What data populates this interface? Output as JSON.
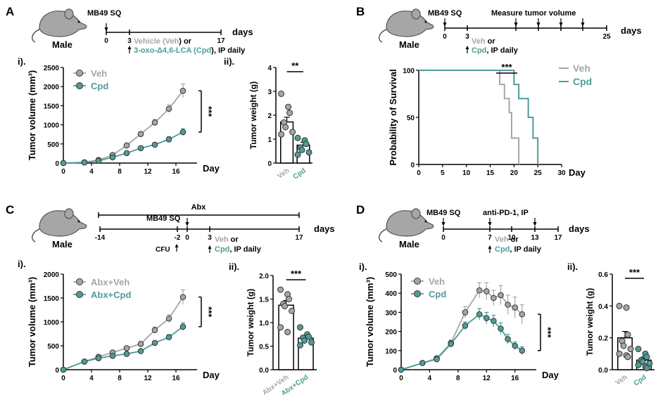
{
  "colors": {
    "veh": "#a6a6a6",
    "cpd": "#4f9c98",
    "axis": "#000000",
    "mouse": "#a6a6a6"
  },
  "panels": {
    "A": {
      "letter": "A",
      "mouse_label": "Male",
      "event": "MB49 SQ",
      "days_label": "days",
      "ticks": [
        "0",
        "3",
        "17"
      ],
      "treat_parts": [
        {
          "t": "Vehicle (",
          "c": "veh"
        },
        {
          "t": "Veh",
          "c": "veh"
        },
        {
          "t": ") or",
          "c": "axis"
        }
      ],
      "treat_line2": [
        {
          "t": "3-oxo-Δ4,6-LCA (",
          "c": "cpd"
        },
        {
          "t": "Cpd",
          "c": "cpd"
        },
        {
          "t": "), IP daily",
          "c": "axis"
        }
      ],
      "sub_i": "i).",
      "sub_ii": "ii)."
    },
    "B": {
      "letter": "B",
      "mouse_label": "Male",
      "event": "MB49 SQ",
      "measure": "Measure tumor volume",
      "days_label": "days",
      "ticks": [
        "0",
        "3",
        "25"
      ],
      "treat_veh": "Veh",
      "treat_or": "or",
      "treat_cpd": "Cpd",
      "treat_rest": ", IP daily"
    },
    "C": {
      "letter": "C",
      "mouse_label": "Male",
      "abx": "Abx",
      "event": "MB49 SQ",
      "days_label": "days",
      "ticks": [
        "-14",
        "-2",
        "0",
        "3",
        "17"
      ],
      "cfu": "CFU",
      "treat_veh": "Veh",
      "treat_or": "or",
      "treat_cpd": "Cpd",
      "treat_rest": ", IP daily",
      "sub_i": "i).",
      "sub_ii": "ii)."
    },
    "D": {
      "letter": "D",
      "mouse_label": "Male",
      "event": "MB49 SQ",
      "antipd1": "anti-PD-1, IP",
      "days_label": "days",
      "ticks": [
        "0",
        "7",
        "10",
        "13",
        "17"
      ],
      "treat_veh": "Veh",
      "treat_or": "or",
      "treat_cpd": "Cpd",
      "treat_rest": ", IP daily",
      "sub_i": "i).",
      "sub_ii": "ii)."
    }
  },
  "chart_data": [
    {
      "id": "A-i",
      "type": "line",
      "xlabel": "Day",
      "ylabel": "Tumor volume (mm³)",
      "xlim": [
        0,
        19
      ],
      "ylim": [
        0,
        2500
      ],
      "xticks": [
        0,
        4,
        8,
        12,
        16
      ],
      "yticks": [
        0,
        500,
        1000,
        1500,
        2000,
        2500
      ],
      "series": [
        {
          "name": "Veh",
          "color": "veh",
          "x": [
            0,
            3,
            5,
            7,
            9,
            11,
            13,
            15,
            17
          ],
          "y": [
            0,
            20,
            80,
            210,
            460,
            760,
            1060,
            1420,
            1890
          ],
          "err": [
            0,
            10,
            20,
            30,
            40,
            60,
            80,
            100,
            180
          ]
        },
        {
          "name": "Cpd",
          "color": "cpd",
          "x": [
            0,
            3,
            5,
            7,
            9,
            11,
            13,
            15,
            17
          ],
          "y": [
            0,
            15,
            60,
            150,
            260,
            390,
            480,
            620,
            810
          ],
          "err": [
            0,
            8,
            15,
            25,
            35,
            45,
            55,
            70,
            90
          ]
        }
      ],
      "significance": "***"
    },
    {
      "id": "A-ii",
      "type": "bar",
      "ylabel": "Tumor weight (g)",
      "ylim": [
        0,
        4
      ],
      "yticks": [
        0,
        1,
        2,
        3,
        4
      ],
      "categories": [
        "Veh",
        "Cpd"
      ],
      "values": [
        1.72,
        0.75
      ],
      "err": [
        0.2,
        0.12
      ],
      "points": [
        [
          2.9,
          2.35,
          2.1,
          1.7,
          1.5,
          1.3,
          1.2
        ],
        [
          1.05,
          0.95,
          0.8,
          0.65,
          0.55,
          0.45,
          0.35
        ]
      ],
      "significance": "**"
    },
    {
      "id": "B",
      "type": "line",
      "subtype": "survival",
      "xlabel": "Day",
      "ylabel": "Probability of Survival",
      "xlim": [
        0,
        30
      ],
      "ylim": [
        0,
        100
      ],
      "xticks": [
        0,
        5,
        10,
        15,
        20,
        25,
        30
      ],
      "yticks": [
        0,
        50,
        100
      ],
      "series": [
        {
          "name": "Veh",
          "color": "veh",
          "steps": [
            [
              0,
              100
            ],
            [
              17,
              100
            ],
            [
              17,
              85
            ],
            [
              18,
              85
            ],
            [
              18,
              70
            ],
            [
              19,
              70
            ],
            [
              19,
              55
            ],
            [
              19.5,
              55
            ],
            [
              19.5,
              28
            ],
            [
              20,
              28
            ],
            [
              20,
              28
            ],
            [
              21,
              28
            ],
            [
              21,
              0
            ]
          ]
        },
        {
          "name": "Cpd",
          "color": "cpd",
          "steps": [
            [
              0,
              100
            ],
            [
              20,
              100
            ],
            [
              20,
              85
            ],
            [
              21,
              85
            ],
            [
              21,
              70
            ],
            [
              23,
              70
            ],
            [
              23,
              50
            ],
            [
              24,
              50
            ],
            [
              24,
              28
            ],
            [
              25,
              28
            ],
            [
              25,
              0
            ]
          ]
        }
      ],
      "significance": "***"
    },
    {
      "id": "C-i",
      "type": "line",
      "xlabel": "Day",
      "ylabel": "Tumor volume (mm³)",
      "xlim": [
        0,
        19
      ],
      "ylim": [
        0,
        2000
      ],
      "xticks": [
        0,
        4,
        8,
        12,
        16
      ],
      "yticks": [
        0,
        500,
        1000,
        1500,
        2000
      ],
      "series": [
        {
          "name": "Abx+Veh",
          "color": "veh",
          "x": [
            0,
            3,
            5,
            7,
            9,
            11,
            13,
            15,
            17
          ],
          "y": [
            0,
            170,
            270,
            360,
            450,
            540,
            830,
            1070,
            1520
          ],
          "err": [
            0,
            20,
            25,
            30,
            35,
            40,
            60,
            80,
            150
          ]
        },
        {
          "name": "Abx+Cpd",
          "color": "cpd",
          "x": [
            0,
            3,
            5,
            7,
            9,
            11,
            13,
            15,
            17
          ],
          "y": [
            0,
            170,
            240,
            290,
            330,
            390,
            560,
            680,
            900
          ],
          "err": [
            0,
            20,
            20,
            25,
            25,
            30,
            45,
            55,
            80
          ]
        }
      ],
      "significance": "***"
    },
    {
      "id": "C-ii",
      "type": "bar",
      "ylabel": "Tumor weight (g)",
      "ylim": [
        0,
        2.0
      ],
      "yticks": [
        0.0,
        0.5,
        1.0,
        1.5,
        2.0
      ],
      "categories": [
        "Abx+Veh",
        "Abx+Cpd"
      ],
      "values": [
        1.37,
        0.67
      ],
      "err": [
        0.1,
        0.05
      ],
      "points": [
        [
          1.7,
          1.6,
          1.5,
          1.4,
          1.35,
          1.25,
          0.9,
          0.8
        ],
        [
          0.9,
          0.75,
          0.7,
          0.68,
          0.62,
          0.58,
          0.52
        ]
      ],
      "significance": "***"
    },
    {
      "id": "D-i",
      "type": "line",
      "xlabel": "Day",
      "ylabel": "Tumor volume (mm³)",
      "xlim": [
        0,
        19
      ],
      "ylim": [
        0,
        500
      ],
      "xticks": [
        0,
        4,
        8,
        12,
        16
      ],
      "yticks": [
        0,
        100,
        200,
        300,
        400,
        500
      ],
      "series": [
        {
          "name": "Veh",
          "color": "veh",
          "x": [
            0,
            3,
            5,
            7,
            9,
            11,
            12,
            13,
            14,
            15,
            16,
            17
          ],
          "y": [
            0,
            35,
            60,
            140,
            300,
            415,
            410,
            375,
            390,
            340,
            325,
            290
          ],
          "err": [
            0,
            5,
            8,
            15,
            30,
            40,
            45,
            40,
            50,
            50,
            55,
            50
          ]
        },
        {
          "name": "Cpd",
          "color": "cpd",
          "x": [
            0,
            3,
            5,
            7,
            9,
            11,
            12,
            13,
            14,
            15,
            16,
            17
          ],
          "y": [
            0,
            35,
            55,
            135,
            230,
            290,
            270,
            255,
            215,
            160,
            125,
            100
          ],
          "err": [
            0,
            5,
            8,
            12,
            20,
            30,
            30,
            30,
            30,
            25,
            20,
            20
          ]
        }
      ],
      "significance": "***"
    },
    {
      "id": "D-ii",
      "type": "bar",
      "ylabel": "Tumor weight (g)",
      "ylim": [
        0,
        0.6
      ],
      "yticks": [
        0.0,
        0.2,
        0.4,
        0.6
      ],
      "categories": [
        "Veh",
        "Cpd"
      ],
      "values": [
        0.2,
        0.06
      ],
      "err": [
        0.04,
        0.02
      ],
      "points": [
        [
          0.4,
          0.39,
          0.22,
          0.18,
          0.15,
          0.13,
          0.1,
          0.09,
          0.08
        ],
        [
          0.13,
          0.1,
          0.08,
          0.06,
          0.05,
          0.04,
          0.03,
          0.02,
          0.01
        ]
      ],
      "significance": "***"
    }
  ]
}
